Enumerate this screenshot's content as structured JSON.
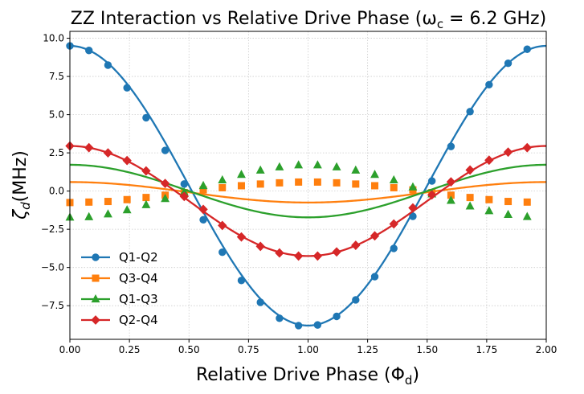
{
  "chart_data": {
    "type": "line",
    "title": "ZZ Interaction vs Relative Drive Phase (ω",
    "title_sub": "c",
    "title_tail": " = 6.2 GHz)",
    "xlabel": "Relative Drive Phase (Φ",
    "xlabel_sub": "d",
    "xlabel_tail": ")",
    "ylabel": "ζ",
    "ylabel_sub": "d",
    "ylabel_tail": "(MHz)",
    "xlim": [
      0,
      2
    ],
    "ylim": [
      -9.7,
      10.45
    ],
    "grid": true,
    "legend_position": "lower-left",
    "x_ticks": [
      "0.00",
      "0.25",
      "0.50",
      "0.75",
      "1.00",
      "1.25",
      "1.50",
      "1.75",
      "2.00"
    ],
    "y_ticks": [
      "10.0",
      "7.5",
      "5.0",
      "2.5",
      "0.0",
      "−2.5",
      "−5.0",
      "−7.5"
    ],
    "x": [
      0.0,
      0.08,
      0.16,
      0.24,
      0.32,
      0.4,
      0.48,
      0.56,
      0.64,
      0.72,
      0.8,
      0.88,
      0.96,
      1.04,
      1.12,
      1.2,
      1.28,
      1.36,
      1.44,
      1.52,
      1.6,
      1.68,
      1.76,
      1.84,
      1.92
    ],
    "series": [
      {
        "name": "Q1-Q2",
        "color": "#1f77b4",
        "marker": "circle",
        "mean": 0.35,
        "amp": 9.15,
        "values": [
          9.5,
          9.2,
          8.24,
          6.76,
          4.8,
          2.66,
          0.46,
          -1.88,
          -4.0,
          -5.85,
          -7.28,
          -8.32,
          -8.8,
          -8.76,
          -8.2,
          -7.12,
          -5.6,
          -3.75,
          -1.65,
          0.66,
          2.92,
          5.2,
          6.96,
          8.36,
          9.28
        ]
      },
      {
        "name": "Q3-Q4",
        "color": "#ff7f0e",
        "marker": "square",
        "mean": -0.08,
        "amp": 0.67,
        "values": [
          -0.75,
          -0.72,
          -0.68,
          -0.56,
          -0.42,
          -0.27,
          -0.1,
          0.08,
          0.22,
          0.35,
          0.46,
          0.54,
          0.59,
          0.59,
          0.54,
          0.46,
          0.35,
          0.22,
          0.08,
          -0.1,
          -0.27,
          -0.42,
          -0.56,
          -0.68,
          -0.72
        ]
      },
      {
        "name": "Q1-Q3",
        "color": "#2ca02c",
        "marker": "triangle",
        "mean": 0.0,
        "amp": 1.72,
        "values": [
          -1.72,
          -1.69,
          -1.51,
          -1.24,
          -0.9,
          -0.5,
          -0.08,
          0.35,
          0.72,
          1.08,
          1.36,
          1.57,
          1.7,
          1.7,
          1.57,
          1.36,
          1.08,
          0.72,
          0.26,
          -0.2,
          -0.62,
          -0.99,
          -1.3,
          -1.54,
          -1.68
        ]
      },
      {
        "name": "Q2-Q4",
        "color": "#d62728",
        "marker": "diamond",
        "mean": -0.65,
        "amp": 3.6,
        "values": [
          2.95,
          2.84,
          2.5,
          2.0,
          1.32,
          0.5,
          -0.35,
          -1.2,
          -2.25,
          -3.0,
          -3.62,
          -4.05,
          -4.25,
          -4.25,
          -3.98,
          -3.55,
          -2.93,
          -2.15,
          -1.1,
          -0.25,
          0.6,
          1.38,
          2.02,
          2.55,
          2.84
        ]
      }
    ]
  }
}
